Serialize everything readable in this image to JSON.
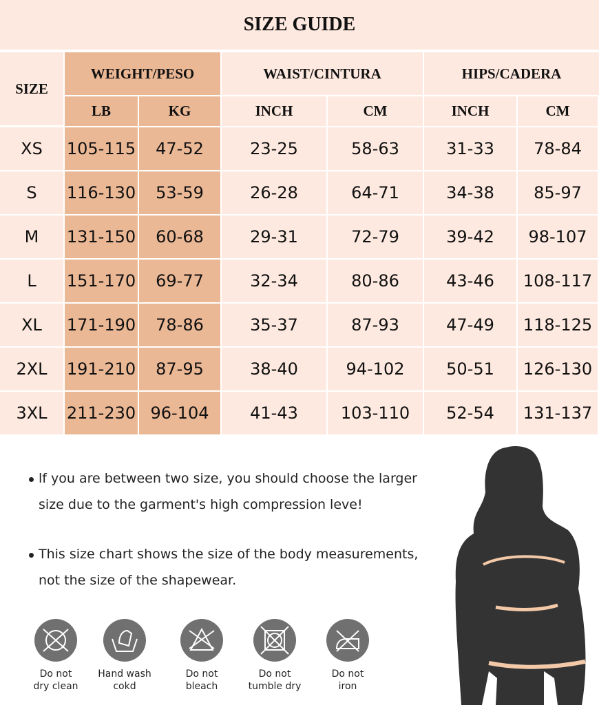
{
  "title": "SIZE GUIDE",
  "headers": {
    "size": "SIZE",
    "weight": "WEIGHT/PESO",
    "waist": "WAIST/CINTURA",
    "hips": "HIPS/CADERA",
    "lb": "LB",
    "kg": "KG",
    "waist_inch": "INCH",
    "waist_cm": "CM",
    "hips_inch": "INCH",
    "hips_cm": "CM"
  },
  "rows": [
    [
      "XS",
      "105-115",
      "47-52",
      "23-25",
      "58-63",
      "31-33",
      "78-84"
    ],
    [
      "S",
      "116-130",
      "53-59",
      "26-28",
      "64-71",
      "34-38",
      "85-97"
    ],
    [
      "M",
      "131-150",
      "60-68",
      "29-31",
      "72-79",
      "39-42",
      "98-107"
    ],
    [
      "L",
      "151-170",
      "69-77",
      "32-34",
      "80-86",
      "43-46",
      "108-117"
    ],
    [
      "XL",
      "171-190",
      "78-86",
      "35-37",
      "87-93",
      "47-49",
      "118-125"
    ],
    [
      "2XL",
      "191-210",
      "87-95",
      "38-40",
      "94-102",
      "50-51",
      "126-130"
    ],
    [
      "3XL",
      "211-230",
      "96-104",
      "41-43",
      "103-110",
      "52-54",
      "131-137"
    ]
  ],
  "notes": [
    "lf you are between two size, you should choose the larger size due to the garment's high compression leve!",
    "This size chart shows the size of the body measurements, not the size of the shapewear."
  ],
  "care": [
    {
      "icon": "no-dry-clean-icon",
      "label1": "Do not",
      "label2": "dry clean"
    },
    {
      "icon": "hand-wash-icon",
      "label1": "Hand wash",
      "label2": "cokd"
    },
    {
      "icon": "no-bleach-icon",
      "label1": "Do not",
      "label2": "bleach"
    },
    {
      "icon": "no-tumble-dry-icon",
      "label1": "Do not",
      "label2": "tumble dry"
    },
    {
      "icon": "no-iron-icon",
      "label1": "Do not",
      "label2": "iron"
    }
  ],
  "colors": {
    "background": "#fde9df",
    "weight_column": "#ebb896",
    "icon": "#707070",
    "measure_line": "#f3c9a8"
  }
}
